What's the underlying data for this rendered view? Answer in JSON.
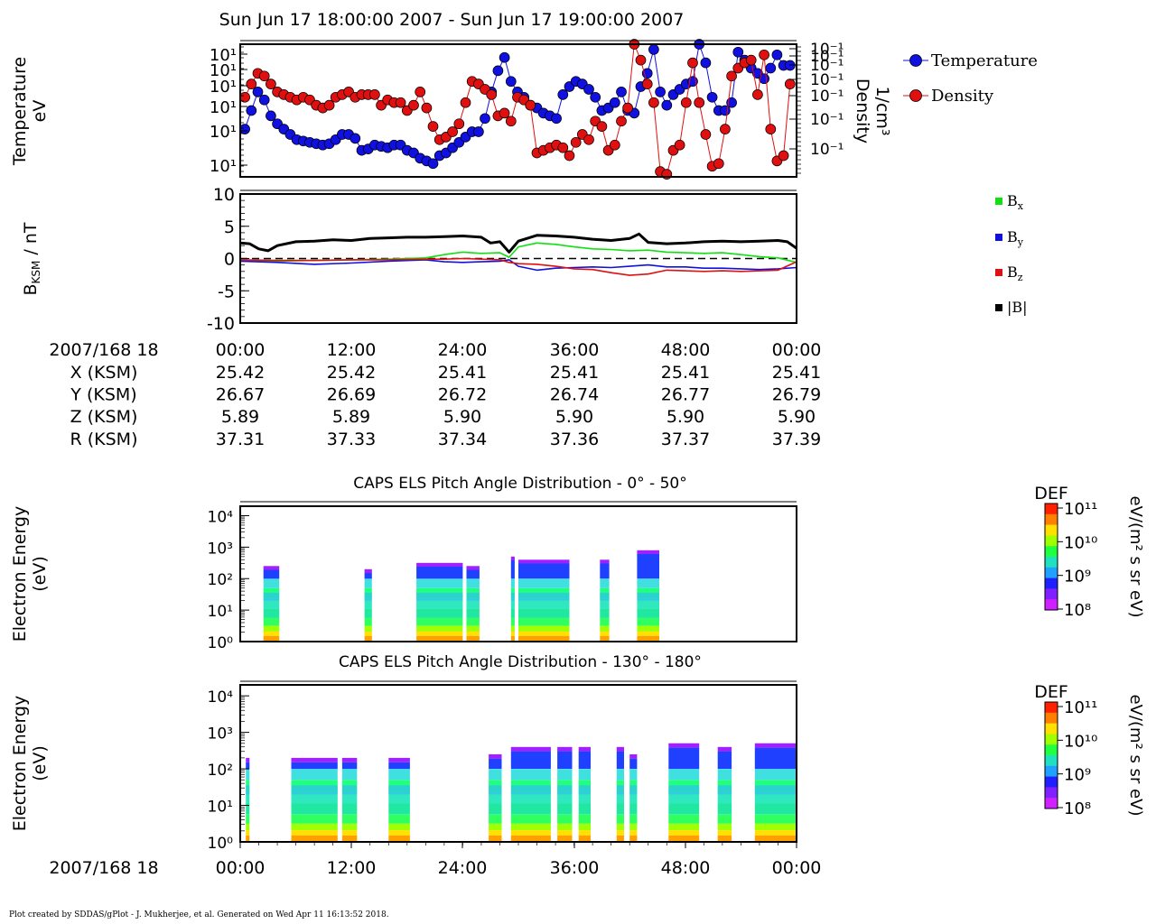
{
  "title": "Sun Jun 17 18:00:00 2007 - Sun Jun 17 19:00:00 2007",
  "footer": "Plot created by SDDAS/gPlot - J. Mukherjee, et al.  Generated on Wed Apr 11 16:13:52 2018.",
  "colors": {
    "temperature": "#1010e0",
    "density": "#e01010",
    "bx": "#10e010",
    "by": "#1010e0",
    "bz": "#e01010",
    "bmag": "#000000"
  },
  "chart_data": [
    {
      "type": "scatter",
      "ylabel": [
        "Temperature",
        "eV"
      ],
      "y2label": [
        "Density",
        "1/cm³"
      ],
      "y_tick_labels": [
        "10¹",
        "10¹",
        "10¹",
        "10¹",
        "10¹",
        "10¹"
      ],
      "y2_tick_labels": [
        "10⁻¹",
        "10⁻¹",
        "10⁻¹",
        "10⁻¹",
        "10⁻¹",
        "10⁻¹",
        "10⁻¹"
      ],
      "legend": [
        "Temperature",
        "Density"
      ],
      "xlim": [
        0,
        60
      ],
      "series": [
        {
          "name": "Temperature",
          "x": [
            0.5,
            1.2,
            1.9,
            2.6,
            3.3,
            4.0,
            4.7,
            5.4,
            6.1,
            6.8,
            7.5,
            8.2,
            8.9,
            9.6,
            10.3,
            11.0,
            11.7,
            12.4,
            13.1,
            13.8,
            14.5,
            15.2,
            15.9,
            16.6,
            17.3,
            18.0,
            18.7,
            19.4,
            20.1,
            20.8,
            21.5,
            22.2,
            22.9,
            23.6,
            24.3,
            25.0,
            25.7,
            26.4,
            27.1,
            27.8,
            28.5,
            29.2,
            29.9,
            30.6,
            31.3,
            32.0,
            32.7,
            33.4,
            34.1,
            34.8,
            35.5,
            36.2,
            36.9,
            37.6,
            38.3,
            39.0,
            39.7,
            40.4,
            41.1,
            41.8,
            42.5,
            43.2,
            43.9,
            44.6,
            45.3,
            46.0,
            46.7,
            47.4,
            48.1,
            48.8,
            49.5,
            50.2,
            50.9,
            51.6,
            52.3,
            53.0,
            53.7,
            54.4,
            55.1,
            55.8,
            56.5,
            57.2,
            57.9,
            58.6,
            59.3
          ],
          "y": [
            1.8,
            2.5,
            3.2,
            2.9,
            2.3,
            2.0,
            1.8,
            1.6,
            1.4,
            1.35,
            1.3,
            1.25,
            1.2,
            1.25,
            1.4,
            1.6,
            1.6,
            1.45,
            1.0,
            1.05,
            1.2,
            1.15,
            1.1,
            1.2,
            1.2,
            1.0,
            0.9,
            0.7,
            0.6,
            0.5,
            0.8,
            0.9,
            1.1,
            1.3,
            1.5,
            1.7,
            1.7,
            2.2,
            3.2,
            4.0,
            4.5,
            3.6,
            3.2,
            3.0,
            2.7,
            2.6,
            2.4,
            2.3,
            2.2,
            3.1,
            3.4,
            3.6,
            3.5,
            3.3,
            3.0,
            2.5,
            2.6,
            2.8,
            3.2,
            2.5,
            2.4,
            3.4,
            3.9,
            4.8,
            3.2,
            2.7,
            3.1,
            3.3,
            3.5,
            3.6,
            5.0,
            4.3,
            3.0,
            2.5,
            2.5,
            2.8,
            4.7,
            4.4,
            4.1,
            3.9,
            3.7,
            4.1,
            4.6,
            4.2,
            4.2
          ]
        },
        {
          "name": "Density",
          "x": [
            0.5,
            1.2,
            1.9,
            2.6,
            3.3,
            4.0,
            4.7,
            5.4,
            6.1,
            6.8,
            7.5,
            8.2,
            8.9,
            9.6,
            10.3,
            11.0,
            11.7,
            12.4,
            13.1,
            13.8,
            14.5,
            15.2,
            15.9,
            16.6,
            17.3,
            18.0,
            18.7,
            19.4,
            20.1,
            20.8,
            21.5,
            22.2,
            22.9,
            23.6,
            24.3,
            25.0,
            25.7,
            26.4,
            27.1,
            27.8,
            28.5,
            29.2,
            29.9,
            30.6,
            31.3,
            32.0,
            32.7,
            33.4,
            34.1,
            34.8,
            35.5,
            36.2,
            36.9,
            37.6,
            38.3,
            39.0,
            39.7,
            40.4,
            41.1,
            41.8,
            42.5,
            43.2,
            43.9,
            44.6,
            45.3,
            46.0,
            46.7,
            47.4,
            48.1,
            48.8,
            49.5,
            50.2,
            50.9,
            51.6,
            52.3,
            53.0,
            53.7,
            54.4,
            55.1,
            55.8,
            56.5,
            57.2,
            57.9,
            58.6,
            59.3
          ],
          "y": [
            3.0,
            3.5,
            3.9,
            3.8,
            3.5,
            3.2,
            3.1,
            3.0,
            2.9,
            3.0,
            2.9,
            2.7,
            2.6,
            2.7,
            3.0,
            3.1,
            3.2,
            3.0,
            3.1,
            3.1,
            3.1,
            2.7,
            2.9,
            2.8,
            2.8,
            2.5,
            2.7,
            3.2,
            2.6,
            1.9,
            1.4,
            1.5,
            1.7,
            2.0,
            2.8,
            3.6,
            3.5,
            3.3,
            3.1,
            2.3,
            2.4,
            2.1,
            3.0,
            2.9,
            2.7,
            0.9,
            1.0,
            1.1,
            1.2,
            1.1,
            0.8,
            1.3,
            1.6,
            1.4,
            2.1,
            1.9,
            1.0,
            1.2,
            2.1,
            2.6,
            5.0,
            4.4,
            3.5,
            2.8,
            0.2,
            0.1,
            1.0,
            1.2,
            2.8,
            4.3,
            2.8,
            1.6,
            0.4,
            0.5,
            1.8,
            3.8,
            4.1,
            4.3,
            4.4,
            3.1,
            4.6,
            1.8,
            0.6,
            0.8,
            3.5
          ]
        }
      ]
    },
    {
      "type": "line",
      "ylabel": "B_KSM / nT",
      "ylim": [
        -10,
        10
      ],
      "y_ticks": [
        10,
        5,
        0,
        -5,
        -10
      ],
      "legend": [
        "Bx",
        "By",
        "Bz",
        "|B|"
      ],
      "xlim": [
        0,
        60
      ],
      "zero_line": true,
      "series": [
        {
          "name": "Bx",
          "x": [
            0,
            4,
            8,
            12,
            16,
            20,
            22,
            24,
            26,
            28,
            29,
            30,
            32,
            34,
            36,
            38,
            40,
            42,
            44,
            46,
            48,
            50,
            52,
            54,
            56,
            58,
            60
          ],
          "y": [
            -0.2,
            -0.4,
            -0.3,
            -0.2,
            -0.1,
            0.1,
            0.6,
            1.0,
            0.8,
            0.9,
            0.2,
            1.8,
            2.4,
            2.2,
            1.8,
            1.5,
            1.4,
            1.2,
            1.3,
            1.0,
            0.9,
            0.8,
            0.9,
            0.6,
            0.3,
            0.1,
            -0.6
          ]
        },
        {
          "name": "By",
          "x": [
            0,
            4,
            8,
            12,
            16,
            20,
            22,
            24,
            26,
            28,
            29,
            30,
            32,
            34,
            36,
            38,
            40,
            42,
            44,
            46,
            48,
            50,
            52,
            54,
            56,
            58,
            60
          ],
          "y": [
            -0.4,
            -0.6,
            -0.9,
            -0.7,
            -0.4,
            -0.2,
            -0.5,
            -0.6,
            -0.5,
            -0.4,
            -0.2,
            -1.2,
            -1.8,
            -1.5,
            -1.4,
            -1.3,
            -1.4,
            -1.2,
            -1.0,
            -1.3,
            -1.3,
            -1.5,
            -1.5,
            -1.6,
            -1.7,
            -1.6,
            -1.4
          ]
        },
        {
          "name": "Bz",
          "x": [
            0,
            4,
            8,
            12,
            16,
            20,
            22,
            24,
            26,
            28,
            29,
            30,
            32,
            34,
            36,
            38,
            40,
            42,
            44,
            46,
            48,
            50,
            52,
            54,
            56,
            58,
            60
          ],
          "y": [
            -0.2,
            -0.3,
            -0.3,
            -0.2,
            -0.2,
            -0.1,
            -0.1,
            0.0,
            -0.1,
            -0.2,
            -0.6,
            -0.8,
            -0.9,
            -1.2,
            -1.6,
            -1.7,
            -2.2,
            -2.6,
            -2.4,
            -1.8,
            -1.9,
            -2.0,
            -1.9,
            -2.0,
            -1.9,
            -1.8,
            -0.5
          ]
        },
        {
          "name": "|B|",
          "x": [
            0,
            1,
            2,
            3,
            4,
            6,
            8,
            10,
            12,
            14,
            16,
            18,
            20,
            22,
            24,
            26,
            27,
            28,
            29,
            30,
            32,
            34,
            36,
            38,
            40,
            42,
            43,
            44,
            46,
            48,
            50,
            52,
            54,
            56,
            58,
            59,
            60
          ],
          "y": [
            2.4,
            2.3,
            1.5,
            1.2,
            2.0,
            2.6,
            2.7,
            2.9,
            2.8,
            3.1,
            3.2,
            3.3,
            3.3,
            3.4,
            3.5,
            3.3,
            2.4,
            2.6,
            1.0,
            2.7,
            3.6,
            3.5,
            3.3,
            3.0,
            2.8,
            3.1,
            3.8,
            2.5,
            2.3,
            2.4,
            2.6,
            2.7,
            2.6,
            2.7,
            2.8,
            2.6,
            1.6
          ]
        }
      ]
    },
    {
      "type": "table",
      "header": "2007/168 18",
      "x_ticks": [
        "00:00",
        "12:00",
        "24:00",
        "36:00",
        "48:00",
        "00:00"
      ],
      "rows": [
        {
          "label": "X (KSM)",
          "values": [
            "25.42",
            "25.42",
            "25.41",
            "25.41",
            "25.41",
            "25.41"
          ]
        },
        {
          "label": "Y (KSM)",
          "values": [
            "26.67",
            "26.69",
            "26.72",
            "26.74",
            "26.77",
            "26.79"
          ]
        },
        {
          "label": "Z (KSM)",
          "values": [
            "5.89",
            "5.89",
            "5.90",
            "5.90",
            "5.90",
            "5.90"
          ]
        },
        {
          "label": "R (KSM)",
          "values": [
            "37.31",
            "37.33",
            "37.34",
            "37.36",
            "37.37",
            "37.39"
          ]
        }
      ]
    },
    {
      "type": "heatmap",
      "title": "CAPS ELS Pitch Angle Distribution - 0° - 50°",
      "ylabel": [
        "Electron Energy",
        "(eV)"
      ],
      "y_tick_labels": [
        "10⁰",
        "10¹",
        "10²",
        "10³",
        "10⁴"
      ],
      "colorbar": {
        "label": "DEF",
        "units": "eV/(m² s sr eV)",
        "ticks": [
          "10¹¹",
          "10¹⁰",
          "10⁹",
          "10⁸"
        ]
      },
      "xlim": [
        0,
        60
      ],
      "ylim_log": [
        0,
        4.3
      ],
      "blocks": [
        [
          2.5,
          4.2,
          2.4
        ],
        [
          13.4,
          14.2,
          2.3
        ],
        [
          19,
          24,
          2.5
        ],
        [
          24.4,
          25.8,
          2.4
        ],
        [
          29.2,
          29.6,
          2.7
        ],
        [
          30,
          35.5,
          2.6
        ],
        [
          38.8,
          39.8,
          2.6
        ],
        [
          42.8,
          45.2,
          2.9
        ]
      ]
    },
    {
      "type": "heatmap",
      "title": "CAPS ELS Pitch Angle Distribution - 130° - 180°",
      "ylabel": [
        "Electron Energy",
        "(eV)"
      ],
      "x_header": "2007/168 18",
      "x_ticks": [
        "00:00",
        "12:00",
        "24:00",
        "36:00",
        "48:00",
        "00:00"
      ],
      "y_tick_labels": [
        "10⁰",
        "10¹",
        "10²",
        "10³",
        "10⁴"
      ],
      "colorbar": {
        "label": "DEF",
        "units": "eV/(m² s sr eV)",
        "ticks": [
          "10¹¹",
          "10¹⁰",
          "10⁹",
          "10⁸"
        ]
      },
      "xlim": [
        0,
        60
      ],
      "ylim_log": [
        0,
        4.3
      ],
      "blocks": [
        [
          0.6,
          1.0,
          2.3
        ],
        [
          5.5,
          10.5,
          2.3
        ],
        [
          11,
          12.6,
          2.3
        ],
        [
          16,
          18.3,
          2.3
        ],
        [
          26.8,
          28.2,
          2.4
        ],
        [
          29.2,
          33.5,
          2.6
        ],
        [
          34.2,
          35.8,
          2.6
        ],
        [
          36.5,
          37.8,
          2.6
        ],
        [
          40.6,
          41.4,
          2.6
        ],
        [
          42,
          42.8,
          2.4
        ],
        [
          46.2,
          49.5,
          2.7
        ],
        [
          51.5,
          53,
          2.6
        ],
        [
          55.5,
          60,
          2.7
        ]
      ]
    }
  ]
}
